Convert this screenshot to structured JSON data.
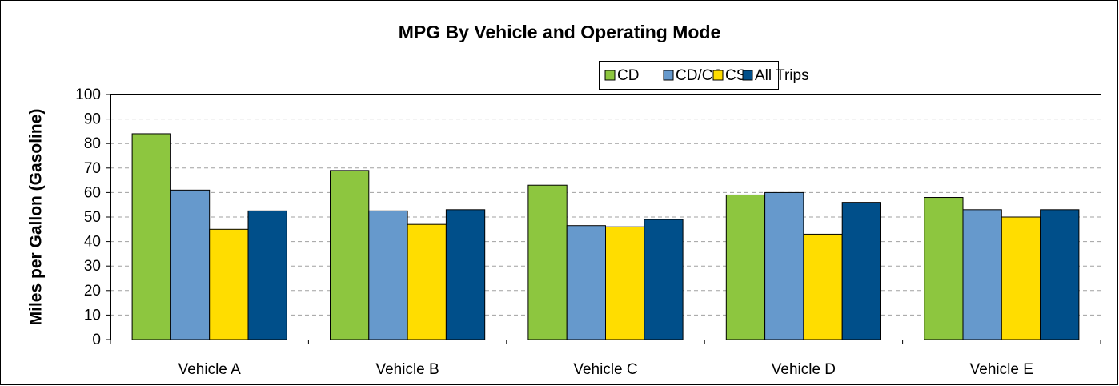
{
  "chart_data": {
    "type": "bar",
    "title": "MPG By Vehicle and Operating Mode",
    "y_label": "Miles per Gallon (Gasoline)",
    "categories": [
      "Vehicle A",
      "Vehicle B",
      "Vehicle C",
      "Vehicle D",
      "Vehicle E"
    ],
    "series": [
      {
        "name": "CD",
        "color": "#8dc63f",
        "values": [
          84,
          69,
          63,
          59,
          58
        ]
      },
      {
        "name": "CD/CS",
        "color": "#6699cc",
        "values": [
          61,
          52.5,
          46.5,
          60,
          53
        ]
      },
      {
        "name": "CS",
        "color": "#ffdd00",
        "values": [
          45,
          47,
          46,
          43,
          50
        ]
      },
      {
        "name": "All Trips",
        "color": "#004f8a",
        "values": [
          52.5,
          53,
          49,
          56,
          53
        ]
      }
    ],
    "ylim": [
      0,
      100
    ],
    "yticks": [
      0,
      10,
      20,
      30,
      40,
      50,
      60,
      70,
      80,
      90,
      100
    ],
    "grid": true,
    "legend": "top-right"
  }
}
